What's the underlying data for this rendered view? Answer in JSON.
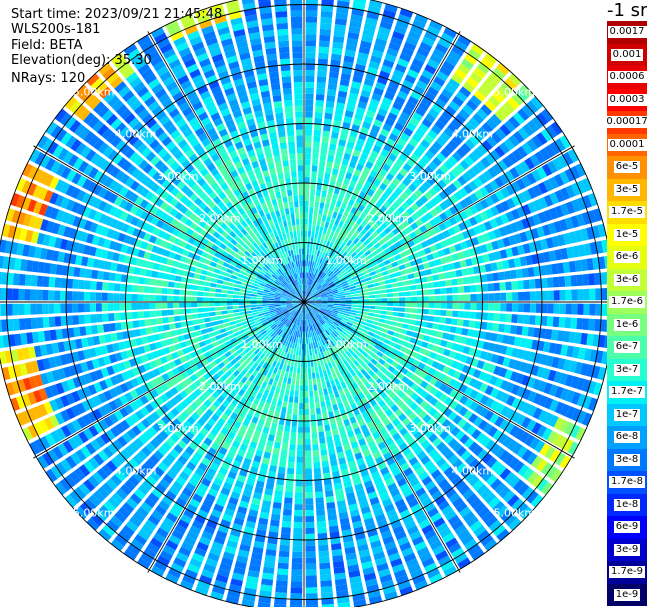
{
  "header": {
    "start_time": "Start time: 2023/09/21 21:45:48",
    "instrument": "WLS200s-181",
    "field": "Field: BETA",
    "elevation": "Elevation(deg): 35.30",
    "nrays": "NRays: 120"
  },
  "colorbar": {
    "unit_label": "-1 sr",
    "bins": [
      {
        "label": "0.0017",
        "color": "#b00000"
      },
      {
        "label": "0.001",
        "color": "#d00000"
      },
      {
        "label": "0.0006",
        "color": "#e80000"
      },
      {
        "label": "0.0003",
        "color": "#ff0000"
      },
      {
        "label": "0.00017",
        "color": "#ff3a00"
      },
      {
        "label": "0.0001",
        "color": "#ff6600"
      },
      {
        "label": "6e-5",
        "color": "#ff9100"
      },
      {
        "label": "3e-5",
        "color": "#ffb700"
      },
      {
        "label": "1.7e-5",
        "color": "#ffdc00"
      },
      {
        "label": "1e-5",
        "color": "#ffff00"
      },
      {
        "label": "6e-6",
        "color": "#e6ff10"
      },
      {
        "label": "3e-6",
        "color": "#c2ff36"
      },
      {
        "label": "1.7e-6",
        "color": "#9cff5b"
      },
      {
        "label": "1e-6",
        "color": "#77ff80"
      },
      {
        "label": "6e-7",
        "color": "#4cffaa"
      },
      {
        "label": "3e-7",
        "color": "#26ffd0"
      },
      {
        "label": "1.7e-7",
        "color": "#00f0f6"
      },
      {
        "label": "1e-7",
        "color": "#00c8ff"
      },
      {
        "label": "6e-8",
        "color": "#00a0ff"
      },
      {
        "label": "3e-8",
        "color": "#0078ff"
      },
      {
        "label": "1.7e-8",
        "color": "#0050ff"
      },
      {
        "label": "1e-8",
        "color": "#0028ff"
      },
      {
        "label": "6e-9",
        "color": "#0000ff"
      },
      {
        "label": "3e-9",
        "color": "#0000cc"
      },
      {
        "label": "1.7e-9",
        "color": "#000099"
      },
      {
        "label": "1e-9",
        "color": "#000066"
      }
    ]
  },
  "chart_data": {
    "type": "heatmap",
    "projection": "polar",
    "field": "BETA",
    "n_rays": 120,
    "elevation_deg": 35.3,
    "scale": "log",
    "range_rings_km": [
      1,
      2,
      3,
      4,
      5
    ],
    "range_ring_labels": [
      "1.00km",
      "2.00km",
      "3.00km",
      "4.00km",
      "5.00km"
    ],
    "radial_spokes_deg": [
      0,
      30,
      60,
      90,
      120,
      150,
      180,
      210,
      240,
      270,
      300,
      330
    ],
    "max_range_km": 5.2,
    "profile_by_range_km": [
      {
        "range_km": 0.5,
        "beta": 6e-08
      },
      {
        "range_km": 1.0,
        "beta": 3e-07
      },
      {
        "range_km": 1.5,
        "beta": 3e-07
      },
      {
        "range_km": 2.0,
        "beta": 3e-07
      },
      {
        "range_km": 2.5,
        "beta": 3e-07
      },
      {
        "range_km": 3.0,
        "beta": 1.7e-07
      },
      {
        "range_km": 3.5,
        "beta": 1e-07
      },
      {
        "range_km": 4.0,
        "beta": 6e-08
      },
      {
        "range_km": 4.5,
        "beta": 6e-08
      },
      {
        "range_km": 5.0,
        "beta": 6e-08
      }
    ],
    "hotspots": [
      {
        "azimuth_deg": 40,
        "range_km_min": 4.5,
        "range_km_max": 5.2,
        "beta": 1.7e-05
      },
      {
        "azimuth_deg": 290,
        "range_km_min": 4.6,
        "range_km_max": 5.2,
        "beta": 0.0001
      },
      {
        "azimuth_deg": 252,
        "range_km_min": 4.6,
        "range_km_max": 5.2,
        "beta": 0.0001
      },
      {
        "azimuth_deg": 340,
        "range_km_min": 4.9,
        "range_km_max": 5.2,
        "beta": 3e-05
      },
      {
        "azimuth_deg": 122,
        "range_km_min": 4.7,
        "range_km_max": 5.2,
        "beta": 6e-06
      },
      {
        "azimuth_deg": 316,
        "range_km_min": 4.8,
        "range_km_max": 5.2,
        "beta": 6e-05
      }
    ],
    "xlabel": "",
    "ylabel": ""
  }
}
